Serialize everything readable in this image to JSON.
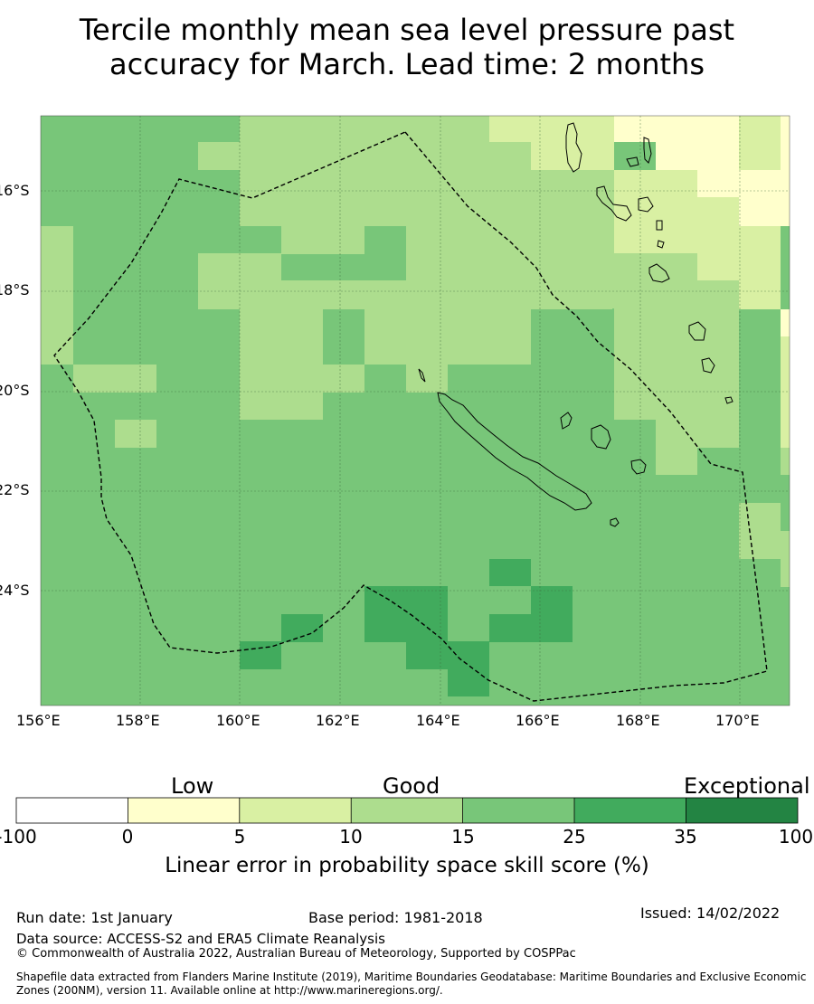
{
  "title": {
    "line1": "Tercile monthly mean sea level pressure past",
    "line2": "accuracy for March. Lead time: 2 months"
  },
  "map": {
    "lon_ticks": [
      "156°E",
      "158°E",
      "160°E",
      "162°E",
      "164°E",
      "166°E",
      "168°E",
      "170°E"
    ],
    "lat_ticks": [
      "16°S",
      "18°S",
      "20°S",
      "22°S",
      "24°S"
    ],
    "gridlines": true,
    "colors": {
      "c0_5": "#ffffcc",
      "c5_10": "#d9f0a3",
      "c10_15": "#addd8e",
      "c15_25": "#78c679",
      "c25_35": "#41ab5d",
      "c35_100": "#238443"
    },
    "boundary_style": "dashed",
    "region_label": "Exclusive Economic Zone boundary (dashed)"
  },
  "colorbar": {
    "categories": [
      "Low",
      "Good",
      "Exceptional"
    ],
    "ticks": [
      "-100",
      "0",
      "5",
      "10",
      "15",
      "25",
      "35",
      "100"
    ],
    "colors": [
      "#ffffff",
      "#ffffcc",
      "#d9f0a3",
      "#addd8e",
      "#78c679",
      "#41ab5d",
      "#238443"
    ],
    "title": "Linear error in probability space skill score (%)"
  },
  "footer": {
    "run_date": "Run date: 1st January",
    "base_period": "Base period: 1981-2018",
    "issued": "Issued: 14/02/2022",
    "data_source": "Data source: ACCESS-S2 and ERA5 Climate Reanalysis",
    "copyright": "© Commonwealth of Australia 2022, Australian Bureau of Meteorology, Supported by COSPPac",
    "shapefile": "Shapefile data extracted from Flanders Marine Institute (2019), Maritime Boundaries Geodatabase: Maritime Boundaries and Exclusive Economic Zones (200NM), version 11. Available online at http://www.marineregions.org/."
  }
}
